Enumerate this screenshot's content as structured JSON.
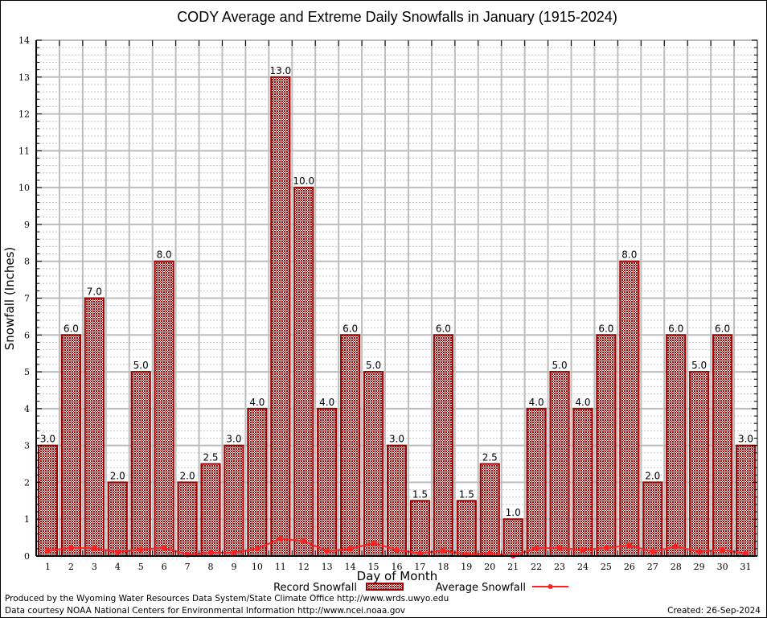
{
  "chart_data": {
    "type": "bar",
    "title": "CODY Average and Extreme Daily Snowfalls in January (1915-2024)",
    "xlabel": "Day of Month",
    "ylabel": "Snowfall (Inches)",
    "ylim": [
      0,
      14
    ],
    "yticks": [
      "0",
      "1",
      "2",
      "3",
      "4",
      "5",
      "6",
      "7",
      "8",
      "9",
      "10",
      "11",
      "12",
      "13",
      "14"
    ],
    "grid": true,
    "categories": [
      "1",
      "2",
      "3",
      "4",
      "5",
      "6",
      "7",
      "8",
      "9",
      "10",
      "11",
      "12",
      "13",
      "14",
      "15",
      "16",
      "17",
      "18",
      "19",
      "20",
      "21",
      "22",
      "23",
      "24",
      "25",
      "26",
      "27",
      "28",
      "29",
      "30",
      "31"
    ],
    "series": [
      {
        "name": "Record Snowfall",
        "type": "bar",
        "color": "#a00000",
        "values": [
          3.0,
          6.0,
          7.0,
          2.0,
          5.0,
          8.0,
          2.0,
          2.5,
          3.0,
          4.0,
          13.0,
          10.0,
          4.0,
          6.0,
          5.0,
          3.0,
          1.5,
          6.0,
          1.5,
          2.5,
          1.0,
          4.0,
          5.0,
          4.0,
          6.0,
          8.0,
          2.0,
          6.0,
          5.0,
          6.0,
          3.0
        ],
        "labels": [
          "3.0",
          "6.0",
          "7.0",
          "2.0",
          "5.0",
          "8.0",
          "2.0",
          "2.5",
          "3.0",
          "4.0",
          "13.0",
          "10.0",
          "4.0",
          "6.0",
          "5.0",
          "3.0",
          "1.5",
          "6.0",
          "1.5",
          "2.5",
          "1.0",
          "4.0",
          "5.0",
          "4.0",
          "6.0",
          "8.0",
          "2.0",
          "6.0",
          "5.0",
          "6.0",
          "3.0"
        ]
      },
      {
        "name": "Average Snowfall",
        "type": "line",
        "color": "#ff2020",
        "values": [
          0.15,
          0.22,
          0.21,
          0.11,
          0.18,
          0.22,
          0.04,
          0.09,
          0.09,
          0.2,
          0.47,
          0.41,
          0.13,
          0.2,
          0.35,
          0.17,
          0.07,
          0.15,
          0.04,
          0.07,
          0.01,
          0.21,
          0.22,
          0.17,
          0.22,
          0.29,
          0.12,
          0.26,
          0.12,
          0.17,
          0.07
        ]
      }
    ],
    "legend": {
      "position": "bottom-center",
      "entries": [
        "Record Snowfall",
        "Average Snowfall"
      ]
    }
  },
  "footer": {
    "produced_by": "Produced by the Wyoming Water Resources Data System/State Climate Office http://www.wrds.uwyo.edu",
    "data_courtesy": "Data courtesy NOAA National Centers for Environmental Information http://www.ncei.noaa.gov",
    "created": "Created:  26-Sep-2024"
  }
}
